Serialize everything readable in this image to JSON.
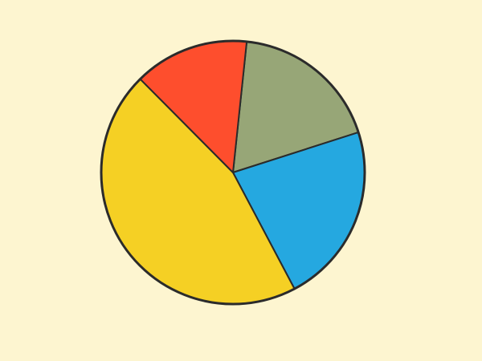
{
  "background_color": "#fdf5d0",
  "outline_color": "#2b2b2b",
  "chart_data": {
    "type": "pie",
    "title": "",
    "start_angle_deg": -84,
    "direction": "clockwise",
    "legend": "none",
    "slices": [
      {
        "value": 18.4,
        "color": "#97a677"
      },
      {
        "value": 22.2,
        "color": "#25a8e0"
      },
      {
        "value": 45.3,
        "color": "#f5d024"
      },
      {
        "value": 14.1,
        "color": "#fe4e2d"
      }
    ]
  }
}
